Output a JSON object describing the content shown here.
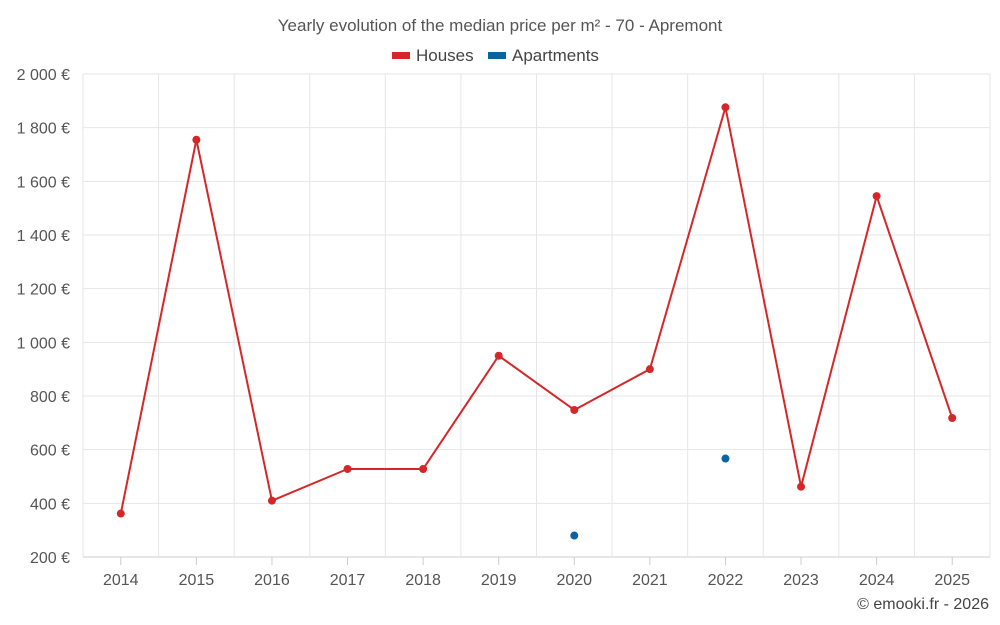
{
  "chart_data": {
    "type": "line",
    "title": "Yearly evolution of the median price per m² - 70 - Apremont",
    "categories": [
      "2014",
      "2015",
      "2016",
      "2017",
      "2018",
      "2019",
      "2020",
      "2021",
      "2022",
      "2023",
      "2024",
      "2025"
    ],
    "series": [
      {
        "name": "Houses",
        "color": "#d62728",
        "values": [
          362,
          1755,
          410,
          528,
          528,
          950,
          748,
          900,
          1876,
          462,
          1545,
          718
        ],
        "line": true
      },
      {
        "name": "Apartments",
        "color": "#0a64a4",
        "values": [
          null,
          null,
          null,
          null,
          null,
          null,
          280,
          null,
          567,
          null,
          null,
          null
        ],
        "line": false
      }
    ],
    "ylim": [
      200,
      2000
    ],
    "yticks": [
      200,
      400,
      600,
      800,
      1000,
      1200,
      1400,
      1600,
      1800,
      2000
    ],
    "ytick_labels": [
      "200 €",
      "400 €",
      "600 €",
      "800 €",
      "1 000 €",
      "1 200 €",
      "1 400 €",
      "1 600 €",
      "1 800 €",
      "2 000 €"
    ],
    "xlabel": "",
    "ylabel": "",
    "grid": true,
    "legend": "top-center"
  },
  "credit": "© emooki.fr - 2026",
  "colors": {
    "grid": "#e6e6e6",
    "axis": "#cccccc"
  }
}
